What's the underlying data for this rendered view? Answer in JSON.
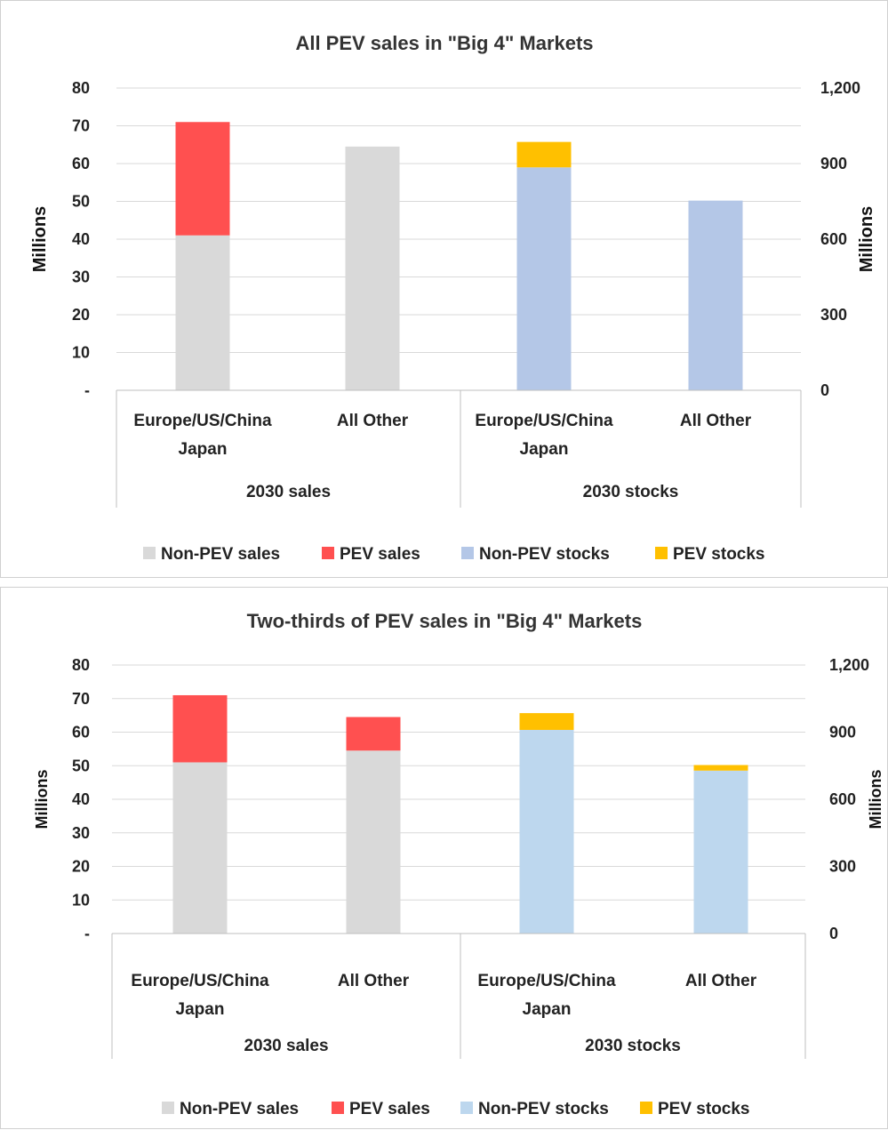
{
  "chart_data": [
    {
      "type": "bar",
      "stacked": true,
      "title": "All PEV sales in \"Big 4\" Markets",
      "ylabel": "Millions",
      "y2label": "Millions",
      "ylim": [
        0,
        80
      ],
      "y2lim": [
        0,
        1200
      ],
      "yticks": [
        "-",
        "10",
        "20",
        "30",
        "40",
        "50",
        "60",
        "70",
        "80"
      ],
      "y2ticks": [
        "0",
        "300",
        "600",
        "900",
        "1,200"
      ],
      "groups": [
        "2030 sales",
        "2030 stocks"
      ],
      "categories": [
        [
          "Europe/US/China",
          "Japan"
        ],
        [
          "All Other"
        ],
        [
          "Europe/US/China",
          "Japan"
        ],
        [
          "All Other"
        ]
      ],
      "series": [
        {
          "name": "Non-PEV sales",
          "axis": "left",
          "color": "#d9d9d9",
          "values": [
            41,
            64.5,
            null,
            null
          ]
        },
        {
          "name": "PEV sales",
          "axis": "left",
          "color": "#ff5050",
          "values": [
            30,
            0,
            null,
            null
          ]
        },
        {
          "name": "Non-PEV stocks",
          "axis": "right",
          "color": "#b4c7e7",
          "values": [
            null,
            null,
            885,
            753
          ]
        },
        {
          "name": "PEV stocks",
          "axis": "right",
          "color": "#ffc000",
          "values": [
            null,
            null,
            101,
            0
          ]
        }
      ],
      "legend_position": "bottom",
      "grid": true
    },
    {
      "type": "bar",
      "stacked": true,
      "title": "Two-thirds of PEV sales in \"Big 4\" Markets",
      "ylabel": "Millions",
      "y2label": "Millions",
      "ylim": [
        0,
        80
      ],
      "y2lim": [
        0,
        1200
      ],
      "yticks": [
        "-",
        "10",
        "20",
        "30",
        "40",
        "50",
        "60",
        "70",
        "80"
      ],
      "y2ticks": [
        "0",
        "300",
        "600",
        "900",
        "1,200"
      ],
      "groups": [
        "2030 sales",
        "2030 stocks"
      ],
      "categories": [
        [
          "Europe/US/China",
          "Japan"
        ],
        [
          "All Other"
        ],
        [
          "Europe/US/China",
          "Japan"
        ],
        [
          "All Other"
        ]
      ],
      "series": [
        {
          "name": "Non-PEV sales",
          "axis": "left",
          "color": "#d9d9d9",
          "values": [
            51,
            54.5,
            null,
            null
          ]
        },
        {
          "name": "PEV sales",
          "axis": "left",
          "color": "#ff5050",
          "values": [
            20,
            10,
            null,
            null
          ]
        },
        {
          "name": "Non-PEV stocks",
          "axis": "right",
          "color": "#bdd7ee",
          "values": [
            null,
            null,
            910,
            728
          ]
        },
        {
          "name": "PEV stocks",
          "axis": "right",
          "color": "#ffc000",
          "values": [
            null,
            null,
            75,
            25
          ]
        }
      ],
      "legend_position": "bottom",
      "grid": true
    }
  ]
}
